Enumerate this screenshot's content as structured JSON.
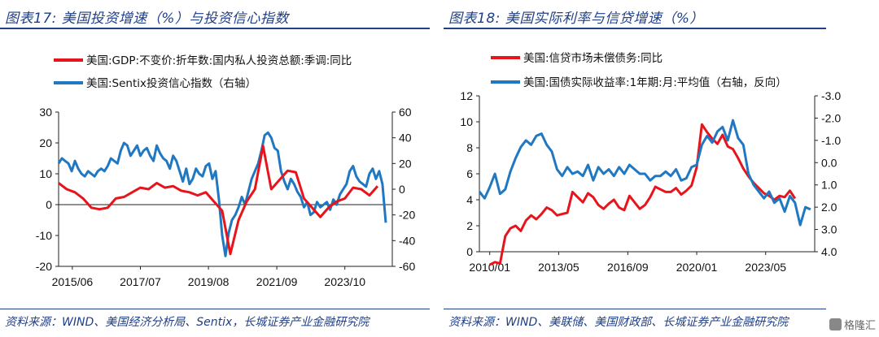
{
  "left_panel": {
    "title": "图表17: 美国投资增速（%）与投资信心指数",
    "source": "资料来源：WIND、美国经济分析局、Sentix，长城证券产业金融研究院"
  },
  "right_panel": {
    "title": "图表18: 美国实际利率与信贷增速（%）",
    "source": "资料来源：WIND、美联储、美国财政部、长城证券产业金融研究院"
  },
  "watermark": {
    "text": "格隆汇"
  },
  "chart_data": [
    {
      "type": "line",
      "x_tick_labels": [
        "2015/06",
        "2017/07",
        "2019/08",
        "2021/09",
        "2023/10"
      ],
      "x_range": [
        2015.0,
        2025.2
      ],
      "x_tick_positions": [
        2015.42,
        2017.5,
        2019.58,
        2021.67,
        2023.75
      ],
      "y_left": {
        "range": [
          -20,
          30
        ],
        "ticks": [
          -20,
          -10,
          0,
          10,
          20,
          30
        ]
      },
      "y_right": {
        "range": [
          -60,
          60
        ],
        "ticks": [
          -60,
          -40,
          -20,
          0,
          20,
          40,
          60
        ]
      },
      "zero_line": true,
      "series": [
        {
          "name": "美国:GDP:不变价:折年数:国内私人投资总额:季调:同比",
          "color": "#e8141c",
          "axis": "left",
          "x": [
            2015.0,
            2015.25,
            2015.5,
            2015.75,
            2016.0,
            2016.25,
            2016.5,
            2016.75,
            2017.0,
            2017.25,
            2017.5,
            2017.75,
            2018.0,
            2018.25,
            2018.5,
            2018.75,
            2019.0,
            2019.25,
            2019.5,
            2019.75,
            2020.0,
            2020.25,
            2020.5,
            2020.75,
            2021.0,
            2021.25,
            2021.5,
            2021.75,
            2022.0,
            2022.25,
            2022.5,
            2022.75,
            2023.0,
            2023.25,
            2023.5,
            2023.75,
            2024.0,
            2024.25,
            2024.5,
            2024.75
          ],
          "y": [
            7,
            5,
            4,
            2,
            -1,
            -1.5,
            -1,
            2,
            2.5,
            4,
            5.5,
            5,
            7,
            5.5,
            6,
            4.5,
            4,
            3,
            4,
            1,
            -2,
            -16,
            -5,
            1,
            5,
            19,
            5,
            8,
            11,
            10.5,
            2,
            -1,
            -4,
            -1,
            1,
            2,
            5.5,
            5,
            3,
            6
          ]
        },
        {
          "name": "美国:Sentix投资信心指数（右轴）",
          "color": "#1f78c1",
          "axis": "right",
          "x": [
            2015.0,
            2015.1,
            2015.2,
            2015.3,
            2015.4,
            2015.5,
            2015.6,
            2015.7,
            2015.8,
            2015.9,
            2016.0,
            2016.1,
            2016.2,
            2016.3,
            2016.4,
            2016.5,
            2016.6,
            2016.7,
            2016.8,
            2016.9,
            2017.0,
            2017.1,
            2017.2,
            2017.3,
            2017.4,
            2017.5,
            2017.6,
            2017.7,
            2017.8,
            2017.9,
            2018.0,
            2018.1,
            2018.2,
            2018.3,
            2018.4,
            2018.5,
            2018.6,
            2018.7,
            2018.8,
            2018.9,
            2019.0,
            2019.1,
            2019.2,
            2019.3,
            2019.4,
            2019.5,
            2019.6,
            2019.7,
            2019.8,
            2019.9,
            2020.0,
            2020.1,
            2020.2,
            2020.3,
            2020.4,
            2020.5,
            2020.6,
            2020.7,
            2020.8,
            2020.9,
            2021.0,
            2021.1,
            2021.2,
            2021.3,
            2021.4,
            2021.5,
            2021.6,
            2021.7,
            2021.8,
            2021.9,
            2022.0,
            2022.1,
            2022.2,
            2022.3,
            2022.4,
            2022.5,
            2022.6,
            2022.7,
            2022.8,
            2022.9,
            2023.0,
            2023.1,
            2023.2,
            2023.3,
            2023.4,
            2023.5,
            2023.6,
            2023.7,
            2023.8,
            2023.9,
            2024.0,
            2024.1,
            2024.2,
            2024.3,
            2024.4,
            2024.5,
            2024.6,
            2024.7,
            2024.8,
            2024.9,
            2025.0
          ],
          "y": [
            20,
            24,
            22,
            20,
            14,
            22,
            16,
            12,
            10,
            14,
            12,
            10,
            14,
            16,
            14,
            18,
            24,
            22,
            20,
            30,
            36,
            34,
            26,
            30,
            34,
            26,
            30,
            32,
            26,
            22,
            34,
            28,
            24,
            22,
            16,
            26,
            22,
            14,
            6,
            16,
            4,
            8,
            16,
            12,
            10,
            18,
            20,
            8,
            14,
            -8,
            -36,
            -52,
            -34,
            -24,
            -20,
            -14,
            -6,
            -12,
            -2,
            8,
            14,
            20,
            30,
            42,
            44,
            40,
            32,
            30,
            14,
            6,
            0,
            8,
            4,
            -2,
            -6,
            -14,
            -10,
            -20,
            -18,
            -10,
            -14,
            -12,
            -10,
            -16,
            -8,
            -12,
            -4,
            0,
            4,
            14,
            18,
            10,
            6,
            4,
            2,
            12,
            16,
            8,
            14,
            4,
            -26
          ]
        }
      ]
    },
    {
      "type": "line",
      "x_tick_labels": [
        "2010/01",
        "2013/05",
        "2016/09",
        "2020/01",
        "2023/05"
      ],
      "x_range": [
        2009.5,
        2025.7
      ],
      "x_tick_positions": [
        2010.0,
        2013.33,
        2016.67,
        2020.0,
        2023.33
      ],
      "y_left": {
        "range": [
          0,
          12
        ],
        "ticks": [
          0,
          2,
          4,
          6,
          8,
          10,
          12
        ]
      },
      "y_right": {
        "range": [
          -3.0,
          4.0
        ],
        "inverted": true,
        "ticks": [
          -3.0,
          -2.0,
          -1.0,
          0.0,
          1.0,
          2.0,
          3.0,
          4.0
        ],
        "tick_labels": [
          "-3.0",
          "-2.0",
          "-1.0",
          "0.0",
          "1.0",
          "2.0",
          "3.0",
          "4.0"
        ]
      },
      "series": [
        {
          "name": "美国:信贷市场未偿债务:同比",
          "color": "#e8141c",
          "axis": "left",
          "x": [
            2010.0,
            2010.25,
            2010.5,
            2010.75,
            2011.0,
            2011.25,
            2011.5,
            2011.75,
            2012.0,
            2012.25,
            2012.5,
            2012.75,
            2013.0,
            2013.25,
            2013.5,
            2013.75,
            2014.0,
            2014.25,
            2014.5,
            2014.75,
            2015.0,
            2015.25,
            2015.5,
            2015.75,
            2016.0,
            2016.25,
            2016.5,
            2016.75,
            2017.0,
            2017.25,
            2017.5,
            2017.75,
            2018.0,
            2018.25,
            2018.5,
            2018.75,
            2019.0,
            2019.25,
            2019.5,
            2019.75,
            2020.0,
            2020.25,
            2020.5,
            2020.75,
            2021.0,
            2021.25,
            2021.5,
            2021.75,
            2022.0,
            2022.25,
            2022.5,
            2022.75,
            2023.0,
            2023.25,
            2023.5,
            2023.75,
            2024.0,
            2024.25,
            2024.5,
            2024.75
          ],
          "y": [
            -1,
            -0.8,
            -0.9,
            1.2,
            1.8,
            2.0,
            1.6,
            2.4,
            2.8,
            2.5,
            2.9,
            3.4,
            3.2,
            2.8,
            2.9,
            3.0,
            4.6,
            4.2,
            3.8,
            4.5,
            4.2,
            3.6,
            3.3,
            3.7,
            4.0,
            3.4,
            3.2,
            4.3,
            3.8,
            3.3,
            3.6,
            4.2,
            5.0,
            4.8,
            4.6,
            4.6,
            4.9,
            4.4,
            4.7,
            5.1,
            6.5,
            9.8,
            9.2,
            8.7,
            8.3,
            9.0,
            8.1,
            7.9,
            7.2,
            6.4,
            5.8,
            5.3,
            4.9,
            4.5,
            4.3,
            4.0,
            4.3,
            4.2,
            4.7,
            4.1
          ]
        },
        {
          "name": "美国:国债实际收益率:1年期:月:平均值（右轴，反向）",
          "color": "#1f78c1",
          "axis": "right",
          "x": [
            2009.5,
            2009.75,
            2010.0,
            2010.25,
            2010.5,
            2010.75,
            2011.0,
            2011.25,
            2011.5,
            2011.75,
            2012.0,
            2012.25,
            2012.5,
            2012.75,
            2013.0,
            2013.25,
            2013.5,
            2013.75,
            2014.0,
            2014.25,
            2014.5,
            2014.75,
            2015.0,
            2015.25,
            2015.5,
            2015.75,
            2016.0,
            2016.25,
            2016.5,
            2016.75,
            2017.0,
            2017.25,
            2017.5,
            2017.75,
            2018.0,
            2018.25,
            2018.5,
            2018.75,
            2019.0,
            2019.25,
            2019.5,
            2019.75,
            2020.0,
            2020.25,
            2020.5,
            2020.75,
            2021.0,
            2021.25,
            2021.5,
            2021.75,
            2022.0,
            2022.25,
            2022.5,
            2022.75,
            2023.0,
            2023.25,
            2023.5,
            2023.75,
            2024.0,
            2024.25,
            2024.5,
            2024.75,
            2025.0,
            2025.25,
            2025.5
          ],
          "y": [
            1.3,
            1.6,
            1.1,
            0.5,
            1.4,
            1.2,
            0.4,
            -0.2,
            -0.7,
            -1.0,
            -0.8,
            -1.2,
            -1.3,
            -0.8,
            -0.5,
            0.3,
            0.6,
            0.2,
            0.5,
            0.4,
            0.6,
            0.1,
            0.8,
            0.2,
            0.5,
            0.3,
            0.6,
            0.2,
            0.5,
            0.1,
            0.3,
            0.5,
            0.5,
            0.8,
            0.6,
            0.6,
            0.4,
            0.6,
            0.3,
            0.8,
            0.7,
            0.2,
            0.1,
            -0.8,
            -1.2,
            -0.9,
            -1.4,
            -1.6,
            -1.0,
            -1.9,
            -1.1,
            -0.8,
            0.5,
            1.0,
            1.3,
            1.6,
            1.3,
            1.8,
            1.6,
            2.2,
            1.5,
            1.8,
            2.8,
            2.0,
            2.1
          ]
        }
      ]
    }
  ]
}
